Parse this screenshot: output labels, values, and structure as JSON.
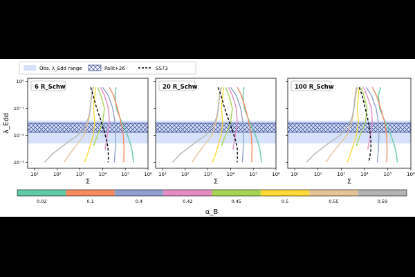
{
  "legend": {
    "obs_label": "Obs. λ_Edd range",
    "palit_label": "Palit+26",
    "ss73_label": "SS73"
  },
  "colors": {
    "obs_band": "#d6e2fb",
    "palit_hatch": "#2a3d8f",
    "ss73": "#000000"
  },
  "colorbar": {
    "label": "α_B",
    "ticks": [
      "0.02",
      "0.1",
      "0.4",
      "0.42",
      "0.45",
      "0.5",
      "0.55",
      "0.59"
    ],
    "colors": [
      "#5fc8a6",
      "#f58a5f",
      "#8ea0cd",
      "#e58ac2",
      "#a6d554",
      "#fdd935",
      "#e5c394",
      "#b3b3b3"
    ]
  },
  "chart_data": [
    {
      "type": "line",
      "panel_label": "6 R_Schw",
      "xlabel": "Σ",
      "ylabel": "λ_Edd",
      "xscale": "log",
      "yscale": "log",
      "xlim": [
        5,
        1000000
      ],
      "ylim": [
        0.0006,
        1.3
      ],
      "x_ticks": [
        "10¹",
        "10²",
        "10³",
        "10⁴",
        "10⁵",
        "10⁶"
      ],
      "y_ticks": [
        "10⁻³",
        "10⁻²",
        "10⁻¹",
        "10⁰"
      ],
      "obs_range": [
        0.005,
        0.035
      ],
      "palit_range": [
        0.013,
        0.028
      ],
      "ss73": {
        "x": [
          3000,
          3800,
          5500,
          8000,
          11500,
          15500,
          17500,
          18000,
          17500
        ],
        "y": [
          0.6,
          0.3,
          0.1,
          0.04,
          0.015,
          0.006,
          0.003,
          0.0015,
          0.001
        ]
      },
      "series": [
        {
          "x": [
            40000,
            35000,
            40000,
            70000,
            125000,
            180000,
            210000,
            230000
          ],
          "y": [
            0.6,
            0.3,
            0.1,
            0.03,
            0.01,
            0.004,
            0.002,
            0.001
          ]
        },
        {
          "x": [
            20000,
            30000,
            45000,
            65000,
            82000,
            88000,
            85000
          ],
          "y": [
            0.6,
            0.3,
            0.1,
            0.03,
            0.01,
            0.003,
            0.001
          ]
        },
        {
          "x": [
            10000,
            18000,
            28000,
            35000,
            38000,
            36000,
            33000
          ],
          "y": [
            0.6,
            0.3,
            0.1,
            0.03,
            0.01,
            0.003,
            0.001
          ]
        },
        {
          "x": [
            8000,
            12000,
            18000,
            20000,
            16000,
            13000
          ],
          "y": [
            0.6,
            0.3,
            0.1,
            0.03,
            0.01,
            0.003
          ]
        },
        {
          "x": [
            6000,
            8500,
            12000,
            10000,
            6000,
            4000
          ],
          "y": [
            0.6,
            0.3,
            0.1,
            0.03,
            0.01,
            0.004
          ]
        },
        {
          "x": [
            5000,
            4500,
            4000,
            4200,
            4500,
            3800,
            3000,
            2200,
            1600
          ],
          "y": [
            0.6,
            0.3,
            0.1,
            0.06,
            0.03,
            0.01,
            0.005,
            0.002,
            0.001
          ]
        },
        {
          "x": [
            4000,
            3200,
            2800,
            2600,
            2300,
            1500,
            800,
            350,
            200
          ],
          "y": [
            0.6,
            0.3,
            0.1,
            0.05,
            0.03,
            0.01,
            0.005,
            0.002,
            0.001
          ]
        },
        {
          "x": [
            3800,
            3300,
            2900,
            2500,
            1800,
            800,
            250,
            60,
            28
          ],
          "y": [
            0.6,
            0.3,
            0.1,
            0.05,
            0.025,
            0.01,
            0.005,
            0.002,
            0.001
          ]
        }
      ]
    },
    {
      "type": "line",
      "panel_label": "20 R_Schw",
      "xlabel": "Σ",
      "ylabel": "",
      "xscale": "log",
      "yscale": "log",
      "xlim": [
        5,
        1000000
      ],
      "ylim": [
        0.0006,
        1.3
      ],
      "x_ticks": [
        "10¹",
        "10²",
        "10³",
        "10⁴",
        "10⁵",
        "10⁶"
      ],
      "y_ticks": [],
      "obs_range": [
        0.005,
        0.035
      ],
      "palit_range": [
        0.013,
        0.028
      ],
      "ss73": {
        "x": [
          2800,
          3800,
          5500,
          8000,
          12000,
          17000,
          20000,
          20000,
          19500
        ],
        "y": [
          0.6,
          0.3,
          0.1,
          0.04,
          0.015,
          0.006,
          0.003,
          0.0015,
          0.001
        ]
      },
      "series": [
        {
          "x": [
            40000,
            35000,
            40000,
            70000,
            125000,
            180000,
            210000,
            230000
          ],
          "y": [
            0.6,
            0.3,
            0.1,
            0.03,
            0.01,
            0.004,
            0.002,
            0.001
          ]
        },
        {
          "x": [
            20000,
            30000,
            45000,
            65000,
            82000,
            88000,
            85000
          ],
          "y": [
            0.6,
            0.3,
            0.1,
            0.03,
            0.01,
            0.003,
            0.001
          ]
        },
        {
          "x": [
            10000,
            18000,
            28000,
            35000,
            38000,
            36000,
            33000
          ],
          "y": [
            0.6,
            0.3,
            0.1,
            0.03,
            0.01,
            0.003,
            0.001
          ]
        },
        {
          "x": [
            8000,
            12000,
            18000,
            20000,
            16000,
            13000
          ],
          "y": [
            0.6,
            0.3,
            0.1,
            0.03,
            0.01,
            0.003
          ]
        },
        {
          "x": [
            6000,
            8500,
            12000,
            10000,
            6000,
            4000
          ],
          "y": [
            0.6,
            0.3,
            0.1,
            0.03,
            0.01,
            0.004
          ]
        },
        {
          "x": [
            5000,
            4500,
            4000,
            4200,
            4500,
            3800,
            3000,
            2200,
            1600
          ],
          "y": [
            0.6,
            0.3,
            0.1,
            0.06,
            0.03,
            0.01,
            0.005,
            0.002,
            0.001
          ]
        },
        {
          "x": [
            4000,
            3200,
            2800,
            2600,
            2300,
            1500,
            800,
            350,
            200
          ],
          "y": [
            0.6,
            0.3,
            0.1,
            0.05,
            0.03,
            0.01,
            0.005,
            0.002,
            0.001
          ]
        },
        {
          "x": [
            3800,
            3300,
            2900,
            2500,
            1800,
            800,
            250,
            60,
            28
          ],
          "y": [
            0.6,
            0.3,
            0.1,
            0.05,
            0.025,
            0.01,
            0.005,
            0.002,
            0.001
          ]
        }
      ]
    },
    {
      "type": "line",
      "panel_label": "100 R_Schw",
      "xlabel": "Σ",
      "ylabel": "",
      "xscale": "log",
      "yscale": "log",
      "xlim": [
        5,
        1000000
      ],
      "ylim": [
        0.0006,
        1.3
      ],
      "x_ticks": [
        "10¹",
        "10²",
        "10³",
        "10⁴",
        "10⁵",
        "10⁶"
      ],
      "y_ticks": [],
      "obs_range": [
        0.005,
        0.035
      ],
      "palit_range": [
        0.013,
        0.028
      ],
      "ss73": {
        "x": [
          6000,
          8000,
          11000,
          14000,
          17000,
          19000,
          19000,
          17000,
          15000
        ],
        "y": [
          0.6,
          0.3,
          0.1,
          0.04,
          0.015,
          0.006,
          0.003,
          0.0015,
          0.001
        ]
      },
      "series": [
        {
          "x": [
            50000,
            40000,
            45000,
            80000,
            140000,
            200000,
            240000,
            260000
          ],
          "y": [
            0.6,
            0.3,
            0.1,
            0.03,
            0.01,
            0.004,
            0.002,
            0.001
          ]
        },
        {
          "x": [
            22000,
            33000,
            50000,
            75000,
            90000,
            95000,
            92000
          ],
          "y": [
            0.6,
            0.3,
            0.1,
            0.03,
            0.01,
            0.003,
            0.001
          ]
        },
        {
          "x": [
            12000,
            20000,
            32000,
            40000,
            42000,
            40000,
            36000
          ],
          "y": [
            0.6,
            0.3,
            0.1,
            0.03,
            0.01,
            0.003,
            0.001
          ]
        },
        {
          "x": [
            9000,
            13000,
            20000,
            22000,
            18000,
            14000
          ],
          "y": [
            0.6,
            0.3,
            0.1,
            0.03,
            0.01,
            0.003
          ]
        },
        {
          "x": [
            7000,
            9500,
            13000,
            11000,
            6500,
            4500
          ],
          "y": [
            0.6,
            0.3,
            0.1,
            0.03,
            0.01,
            0.004
          ]
        },
        {
          "x": [
            6000,
            5500,
            5000,
            5200,
            5500,
            4500,
            3500,
            2500,
            1800
          ],
          "y": [
            0.6,
            0.3,
            0.1,
            0.06,
            0.03,
            0.01,
            0.005,
            0.002,
            0.001
          ]
        },
        {
          "x": [
            5000,
            4200,
            3600,
            3200,
            2800,
            1800,
            900,
            380,
            220
          ],
          "y": [
            0.6,
            0.3,
            0.1,
            0.05,
            0.03,
            0.01,
            0.005,
            0.002,
            0.001
          ]
        },
        {
          "x": [
            4500,
            4000,
            3500,
            3000,
            2100,
            900,
            280,
            70,
            32
          ],
          "y": [
            0.6,
            0.3,
            0.1,
            0.05,
            0.025,
            0.01,
            0.005,
            0.002,
            0.001
          ]
        }
      ]
    }
  ]
}
